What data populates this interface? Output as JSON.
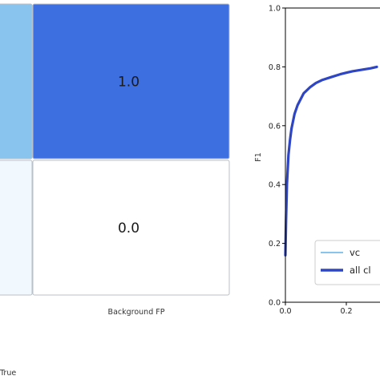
{
  "chart_data": [
    {
      "type": "heatmap",
      "cells": [
        {
          "row": 0,
          "col": 0,
          "value": null,
          "color": "#89c4ee"
        },
        {
          "row": 0,
          "col": 1,
          "value": 1.0,
          "label": "1.0",
          "color": "#3d6fe0"
        },
        {
          "row": 1,
          "col": 0,
          "value": null,
          "color": "#f2f9fe"
        },
        {
          "row": 1,
          "col": 1,
          "value": 0.0,
          "label": "0.0",
          "color": "#ffffff"
        }
      ],
      "xtick_labels": [
        "Background FP"
      ],
      "xlabel": "True"
    },
    {
      "type": "line",
      "ylabel": "F1",
      "xlim": [
        0.0,
        0.3
      ],
      "ylim": [
        0.0,
        1.0
      ],
      "xticks": [
        "0.0",
        "0.2"
      ],
      "yticks": [
        "0.0",
        "0.2",
        "0.4",
        "0.6",
        "0.8",
        "1.0"
      ],
      "grid": false,
      "legend_placement": "bottom-right",
      "series": [
        {
          "name": "vc",
          "color": "#89c4ee",
          "x": [],
          "y": []
        },
        {
          "name": "all cl",
          "color": "#2f46c4",
          "x": [
            0.0,
            0.002,
            0.005,
            0.01,
            0.015,
            0.02,
            0.03,
            0.04,
            0.05,
            0.06,
            0.08,
            0.1,
            0.12,
            0.15,
            0.18,
            0.2,
            0.22,
            0.25,
            0.28,
            0.3
          ],
          "y": [
            0.16,
            0.28,
            0.4,
            0.5,
            0.55,
            0.59,
            0.64,
            0.67,
            0.69,
            0.71,
            0.73,
            0.745,
            0.755,
            0.765,
            0.775,
            0.78,
            0.785,
            0.79,
            0.795,
            0.8
          ]
        }
      ]
    }
  ]
}
